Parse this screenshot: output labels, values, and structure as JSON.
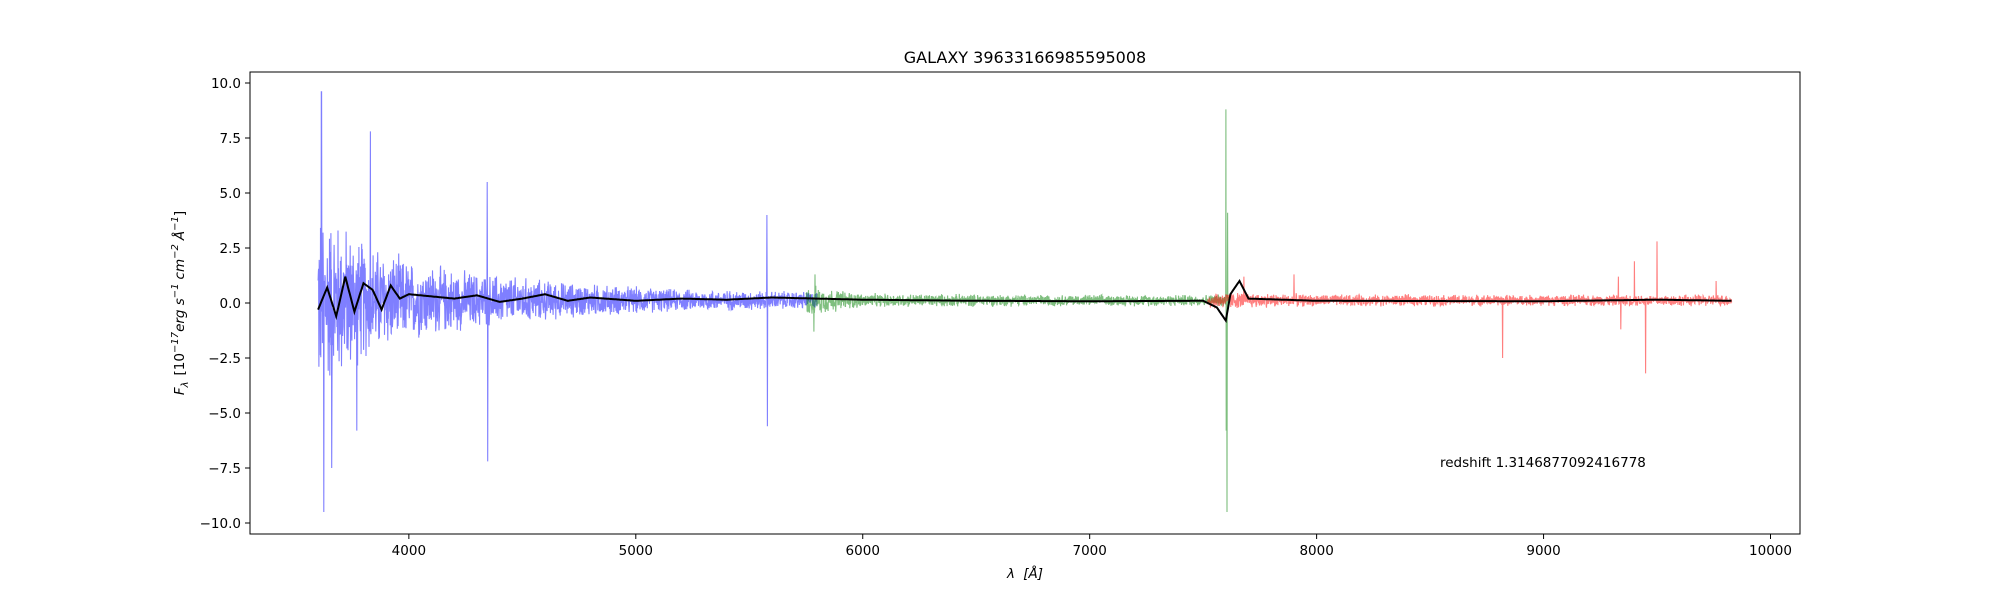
{
  "chart_data": {
    "type": "line",
    "title": "GALAXY 39633166985595008",
    "xlabel_symbol": "λ",
    "xlabel_unit": "[Å]",
    "ylabel_symbol": "F",
    "ylabel_sub": "λ",
    "ylabel_unit_prefix": "[10",
    "ylabel_unit_exp": "−17",
    "ylabel_unit_rest": "erg s",
    "ylabel_unit_rest2": "cm",
    "ylabel_unit_rest3": "Å",
    "xlim": [
      3300,
      10130
    ],
    "ylim": [
      -10.5,
      10.5
    ],
    "x_ticks": [
      4000,
      5000,
      6000,
      7000,
      8000,
      9000,
      10000
    ],
    "x_tick_labels": [
      "4000",
      "5000",
      "6000",
      "7000",
      "8000",
      "9000",
      "10000"
    ],
    "y_ticks": [
      -10.0,
      -7.5,
      -5.0,
      -2.5,
      0.0,
      2.5,
      5.0,
      7.5,
      10.0
    ],
    "y_tick_labels": [
      "−10.0",
      "−7.5",
      "−5.0",
      "−2.5",
      "0.0",
      "2.5",
      "5.0",
      "7.5",
      "10.0"
    ],
    "grid": false,
    "legend": "none",
    "annotation": "redshift 1.3146877092416778",
    "series": [
      {
        "color": "#0000ff",
        "alpha": 0.5,
        "range": [
          3600,
          5800
        ],
        "noise_envelope": [
          [
            3600,
            5.0
          ],
          [
            3800,
            3.0
          ],
          [
            4000,
            2.0
          ],
          [
            4300,
            1.4
          ],
          [
            4700,
            0.9
          ],
          [
            5200,
            0.55
          ],
          [
            5800,
            0.45
          ]
        ],
        "spikes": [
          [
            3615,
            9.6
          ],
          [
            3625,
            -9.5
          ],
          [
            3830,
            7.8
          ],
          [
            4345,
            5.5
          ],
          [
            4348,
            -7.2
          ],
          [
            5578,
            4.0
          ],
          [
            5580,
            -5.6
          ],
          [
            3660,
            -7.5
          ],
          [
            3770,
            -5.8
          ]
        ]
      },
      {
        "color": "#008000",
        "alpha": 0.5,
        "range": [
          5750,
          7620
        ],
        "noise_envelope": [
          [
            5750,
            0.8
          ],
          [
            6000,
            0.35
          ],
          [
            7000,
            0.28
          ],
          [
            7620,
            0.3
          ]
        ],
        "spikes": [
          [
            7600,
            8.8
          ],
          [
            7605,
            -9.5
          ],
          [
            7608,
            4.1
          ],
          [
            7602,
            -5.8
          ],
          [
            5790,
            1.3
          ],
          [
            5785,
            -1.3
          ]
        ]
      },
      {
        "color": "#ff0000",
        "alpha": 0.5,
        "range": [
          7520,
          9830
        ],
        "noise_envelope": [
          [
            7520,
            0.45
          ],
          [
            8000,
            0.3
          ],
          [
            9000,
            0.28
          ],
          [
            9830,
            0.3
          ]
        ],
        "spikes": [
          [
            7680,
            1.2
          ],
          [
            7900,
            1.3
          ],
          [
            8820,
            -2.5
          ],
          [
            9330,
            1.2
          ],
          [
            9340,
            -1.2
          ],
          [
            9450,
            -3.2
          ],
          [
            9500,
            2.8
          ],
          [
            9400,
            1.9
          ],
          [
            9760,
            1.0
          ]
        ]
      },
      {
        "color": "#000000",
        "alpha": 1.0,
        "range": [
          3600,
          9830
        ],
        "model_points": [
          [
            3600,
            -0.3
          ],
          [
            3640,
            0.7
          ],
          [
            3680,
            -0.6
          ],
          [
            3720,
            1.2
          ],
          [
            3760,
            -0.4
          ],
          [
            3800,
            0.9
          ],
          [
            3840,
            0.6
          ],
          [
            3880,
            -0.3
          ],
          [
            3920,
            0.8
          ],
          [
            3960,
            0.2
          ],
          [
            4000,
            0.4
          ],
          [
            4100,
            0.3
          ],
          [
            4200,
            0.2
          ],
          [
            4300,
            0.35
          ],
          [
            4400,
            0.05
          ],
          [
            4500,
            0.2
          ],
          [
            4600,
            0.4
          ],
          [
            4700,
            0.1
          ],
          [
            4800,
            0.25
          ],
          [
            5000,
            0.1
          ],
          [
            5200,
            0.2
          ],
          [
            5400,
            0.15
          ],
          [
            5600,
            0.25
          ],
          [
            5800,
            0.2
          ],
          [
            6000,
            0.15
          ],
          [
            6500,
            0.1
          ],
          [
            7000,
            0.08
          ],
          [
            7500,
            0.1
          ],
          [
            7560,
            -0.2
          ],
          [
            7600,
            -0.8
          ],
          [
            7620,
            0.4
          ],
          [
            7660,
            1.0
          ],
          [
            7700,
            0.2
          ],
          [
            8000,
            0.1
          ],
          [
            9000,
            0.08
          ],
          [
            9500,
            0.15
          ],
          [
            9830,
            0.1
          ]
        ]
      }
    ]
  }
}
